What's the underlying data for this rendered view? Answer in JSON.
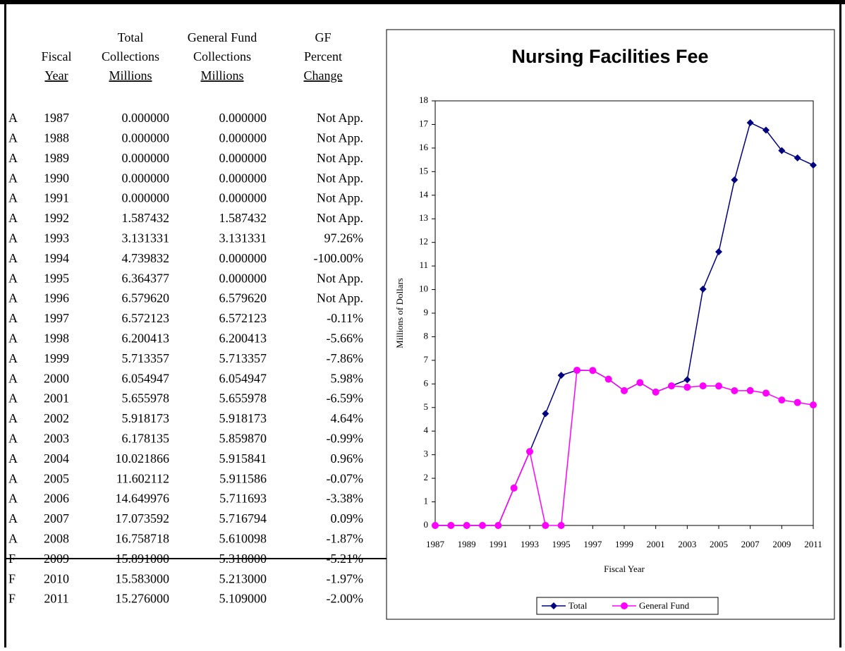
{
  "table": {
    "header": [
      [
        "Fiscal",
        "Year"
      ],
      [
        "Total",
        "Collections",
        "Millions"
      ],
      [
        "General Fund",
        "Collections",
        "Millions"
      ],
      [
        "GF",
        "Percent",
        "Change"
      ]
    ],
    "rows": [
      [
        "A",
        "1987",
        "0.000000",
        "0.000000",
        "Not App."
      ],
      [
        "A",
        "1988",
        "0.000000",
        "0.000000",
        "Not App."
      ],
      [
        "A",
        "1989",
        "0.000000",
        "0.000000",
        "Not App."
      ],
      [
        "A",
        "1990",
        "0.000000",
        "0.000000",
        "Not App."
      ],
      [
        "A",
        "1991",
        "0.000000",
        "0.000000",
        "Not App."
      ],
      [
        "A",
        "1992",
        "1.587432",
        "1.587432",
        "Not App."
      ],
      [
        "A",
        "1993",
        "3.131331",
        "3.131331",
        "97.26%"
      ],
      [
        "A",
        "1994",
        "4.739832",
        "0.000000",
        "-100.00%"
      ],
      [
        "A",
        "1995",
        "6.364377",
        "0.000000",
        "Not App."
      ],
      [
        "A",
        "1996",
        "6.579620",
        "6.579620",
        "Not App."
      ],
      [
        "A",
        "1997",
        "6.572123",
        "6.572123",
        "-0.11%"
      ],
      [
        "A",
        "1998",
        "6.200413",
        "6.200413",
        "-5.66%"
      ],
      [
        "A",
        "1999",
        "5.713357",
        "5.713357",
        "-7.86%"
      ],
      [
        "A",
        "2000",
        "6.054947",
        "6.054947",
        "5.98%"
      ],
      [
        "A",
        "2001",
        "5.655978",
        "5.655978",
        "-6.59%"
      ],
      [
        "A",
        "2002",
        "5.918173",
        "5.918173",
        "4.64%"
      ],
      [
        "A",
        "2003",
        "6.178135",
        "5.859870",
        "-0.99%"
      ],
      [
        "A",
        "2004",
        "10.021866",
        "5.915841",
        "0.96%"
      ],
      [
        "A",
        "2005",
        "11.602112",
        "5.911586",
        "-0.07%"
      ],
      [
        "A",
        "2006",
        "14.649976",
        "5.711693",
        "-3.38%"
      ],
      [
        "A",
        "2007",
        "17.073592",
        "5.716794",
        "0.09%"
      ],
      [
        "A",
        "2008",
        "16.758718",
        "5.610098",
        "-1.87%"
      ],
      [
        "F",
        "2009",
        "15.891000",
        "5.318000",
        "-5.21%"
      ],
      [
        "F",
        "2010",
        "15.583000",
        "5.213000",
        "-1.97%"
      ],
      [
        "F",
        "2011",
        "15.276000",
        "5.109000",
        "-2.00%"
      ]
    ]
  },
  "chart_data": {
    "type": "line",
    "title": "Nursing Facilities Fee",
    "x_label": "Fiscal Year",
    "y_label": "Millions of Dollars",
    "x": [
      1987,
      1988,
      1989,
      1990,
      1991,
      1992,
      1993,
      1994,
      1995,
      1996,
      1997,
      1998,
      1999,
      2000,
      2001,
      2002,
      2003,
      2004,
      2005,
      2006,
      2007,
      2008,
      2009,
      2010,
      2011
    ],
    "xlim": [
      1987,
      2011
    ],
    "xticks": [
      1987,
      1989,
      1991,
      1993,
      1995,
      1997,
      1999,
      2001,
      2003,
      2005,
      2007,
      2009,
      2011
    ],
    "ylim": [
      0,
      18
    ],
    "yticks": [
      0,
      1,
      2,
      3,
      4,
      5,
      6,
      7,
      8,
      9,
      10,
      11,
      12,
      13,
      14,
      15,
      16,
      17,
      18
    ],
    "legend": "bottom",
    "series": [
      {
        "name": "Total",
        "color": "#000080",
        "marker": "diamond",
        "values": [
          0,
          0,
          0,
          0,
          0,
          1.587432,
          3.131331,
          4.739832,
          6.364377,
          6.57962,
          6.572123,
          6.200413,
          5.713357,
          6.054947,
          5.655978,
          5.918173,
          6.178135,
          10.021866,
          11.602112,
          14.649976,
          17.073592,
          16.758718,
          15.891,
          15.583,
          15.276
        ]
      },
      {
        "name": "General Fund",
        "color": "#ff00ff",
        "marker": "circle",
        "values": [
          0,
          0,
          0,
          0,
          0,
          1.587432,
          3.131331,
          0,
          0,
          6.57962,
          6.572123,
          6.200413,
          5.713357,
          6.054947,
          5.655978,
          5.918173,
          5.85987,
          5.915841,
          5.911586,
          5.711693,
          5.716794,
          5.610098,
          5.318,
          5.213,
          5.109
        ]
      }
    ]
  }
}
